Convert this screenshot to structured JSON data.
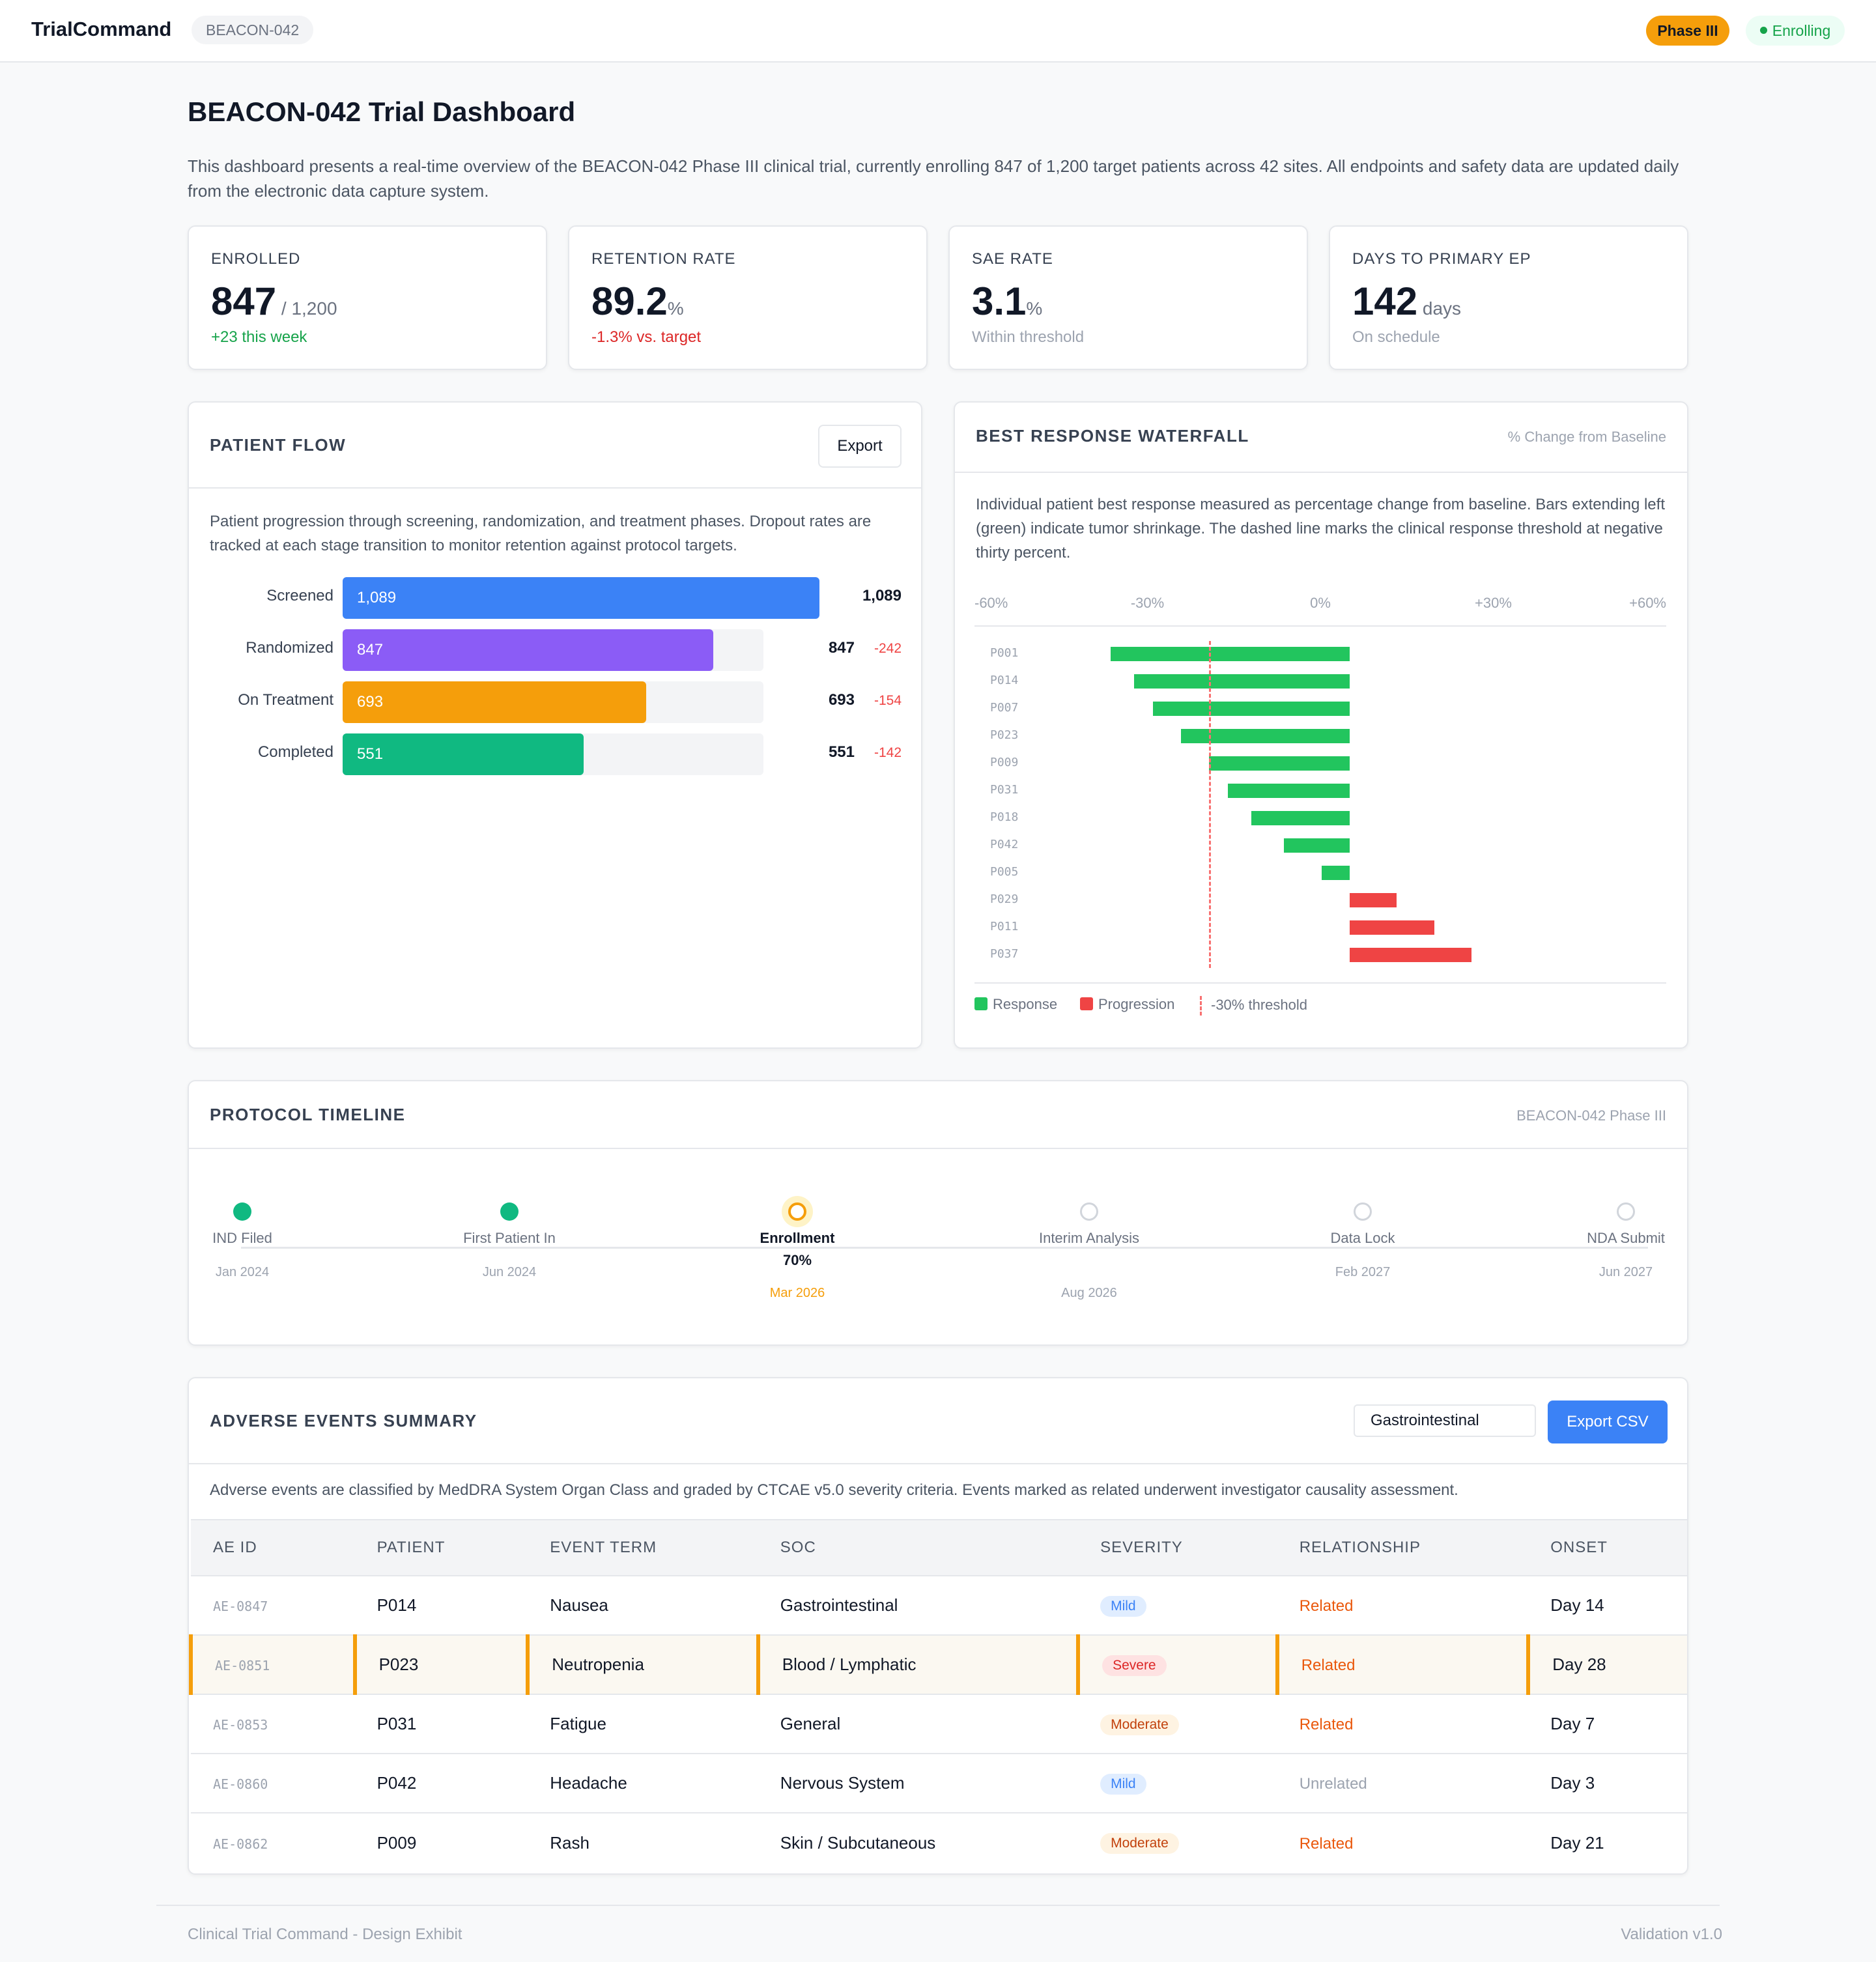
{
  "app": {
    "brand": "TrialCommand",
    "trial_tag": "BEACON-042",
    "phase_badge": "Phase III",
    "status_badge": "Enrolling"
  },
  "page": {
    "title": "BEACON-042 Trial Dashboard",
    "intro": "This dashboard presents a real-time overview of the BEACON-042 Phase III clinical trial, currently enrolling 847 of 1,200 target patients across 42 sites. All endpoints and safety data are updated daily from the electronic data capture system."
  },
  "kpis": [
    {
      "label": "ENROLLED",
      "value": "847",
      "unit": " / 1,200",
      "note": "+23 this week",
      "note_color": "#16a34a"
    },
    {
      "label": "RETENTION RATE",
      "value": "89.2",
      "unit": "%",
      "note": "-1.3% vs. target",
      "note_color": "#dc2626"
    },
    {
      "label": "SAE RATE",
      "value": "3.1",
      "unit": "%",
      "note": "Within threshold",
      "note_color": "#9ca3af"
    },
    {
      "label": "DAYS TO PRIMARY EP",
      "value": "142",
      "unit": " days",
      "note": "On schedule",
      "note_color": "#9ca3af"
    }
  ],
  "patient_flow": {
    "title": "PATIENT FLOW",
    "export_label": "Export",
    "description": "Patient progression through screening, randomization, and treatment phases. Dropout rates are tracked at each stage transition to monitor retention against protocol targets.",
    "stages": [
      {
        "label": "Screened",
        "count": 1089,
        "bar_text": "1,089",
        "value_text": "1,089",
        "dropout": "",
        "color": "#3b82f6"
      },
      {
        "label": "Randomized",
        "count": 847,
        "bar_text": "847",
        "value_text": "847",
        "dropout": "-242",
        "color": "#8b5cf6"
      },
      {
        "label": "On Treatment",
        "count": 693,
        "bar_text": "693",
        "value_text": "693",
        "dropout": "-154",
        "color": "#f59e0b"
      },
      {
        "label": "Completed",
        "count": 551,
        "bar_text": "551",
        "value_text": "551",
        "dropout": "-142",
        "color": "#10b981"
      }
    ]
  },
  "waterfall": {
    "title": "BEST RESPONSE WATERFALL",
    "subtitle": "% Change from Baseline",
    "description": "Individual patient best response measured as percentage change from baseline. Bars extending left (green) indicate tumor shrinkage. The dashed line marks the clinical response threshold at negative thirty percent.",
    "axis_ticks": [
      "-60%",
      "-30%",
      "0%",
      "+30%",
      "+60%"
    ],
    "legend": {
      "response": "Response",
      "progression": "Progression",
      "threshold": "-30% threshold"
    },
    "colors": {
      "response": "#22c55e",
      "progression": "#ef4444",
      "threshold": "#f87171"
    }
  },
  "chart_data": {
    "type": "bar",
    "orientation": "horizontal",
    "categories": [
      "P001",
      "P014",
      "P007",
      "P023",
      "P009",
      "P031",
      "P018",
      "P042",
      "P005",
      "P029",
      "P011",
      "P037"
    ],
    "values": [
      -51,
      -46,
      -42,
      -36,
      -30,
      -26,
      -21,
      -14,
      -6,
      10,
      18,
      26
    ],
    "xlabel": "% Change from Baseline",
    "xlim": [
      -60,
      60
    ],
    "threshold": -30,
    "series": [
      {
        "name": "Response"
      },
      {
        "name": "Progression"
      }
    ]
  },
  "timeline": {
    "title": "PROTOCOL TIMELINE",
    "subtitle": "BEACON-042 Phase III",
    "milestones": [
      {
        "label": "IND Filed",
        "date": "Jan 2024",
        "status": "done"
      },
      {
        "label": "First Patient In",
        "date": "Jun 2024",
        "status": "done"
      },
      {
        "label": "Enrollment",
        "progress": "70%",
        "date": "Mar 2026",
        "status": "current"
      },
      {
        "label": "Interim Analysis",
        "date": "Aug 2026",
        "status": "pending"
      },
      {
        "label": "Data Lock",
        "date": "Feb 2027",
        "status": "pending"
      },
      {
        "label": "NDA Submit",
        "date": "Jun 2027",
        "status": "pending"
      }
    ]
  },
  "adverse_events": {
    "title": "ADVERSE EVENTS SUMMARY",
    "filter_value": "Gastrointestinal",
    "export_label": "Export CSV",
    "description": "Adverse events are classified by MedDRA System Organ Class and graded by CTCAE v5.0 severity criteria. Events marked as related underwent investigator causality assessment.",
    "columns": [
      "AE ID",
      "PATIENT",
      "EVENT TERM",
      "SOC",
      "SEVERITY",
      "RELATIONSHIP",
      "ONSET"
    ],
    "rows": [
      {
        "id": "AE-0847",
        "patient": "P014",
        "term": "Nausea",
        "soc": "Gastrointestinal",
        "severity": "Mild",
        "relationship": "Related",
        "onset": "Day 14",
        "highlight": false
      },
      {
        "id": "AE-0851",
        "patient": "P023",
        "term": "Neutropenia",
        "soc": "Blood / Lymphatic",
        "severity": "Severe",
        "relationship": "Related",
        "onset": "Day 28",
        "highlight": true
      },
      {
        "id": "AE-0853",
        "patient": "P031",
        "term": "Fatigue",
        "soc": "General",
        "severity": "Moderate",
        "relationship": "Related",
        "onset": "Day 7",
        "highlight": false
      },
      {
        "id": "AE-0860",
        "patient": "P042",
        "term": "Headache",
        "soc": "Nervous System",
        "severity": "Mild",
        "relationship": "Unrelated",
        "onset": "Day 3",
        "highlight": false
      },
      {
        "id": "AE-0862",
        "patient": "P009",
        "term": "Rash",
        "soc": "Skin / Subcutaneous",
        "severity": "Moderate",
        "relationship": "Related",
        "onset": "Day 21",
        "highlight": false
      }
    ]
  },
  "footer": {
    "left": "Clinical Trial Command - Design Exhibit",
    "right": "Validation v1.0"
  }
}
